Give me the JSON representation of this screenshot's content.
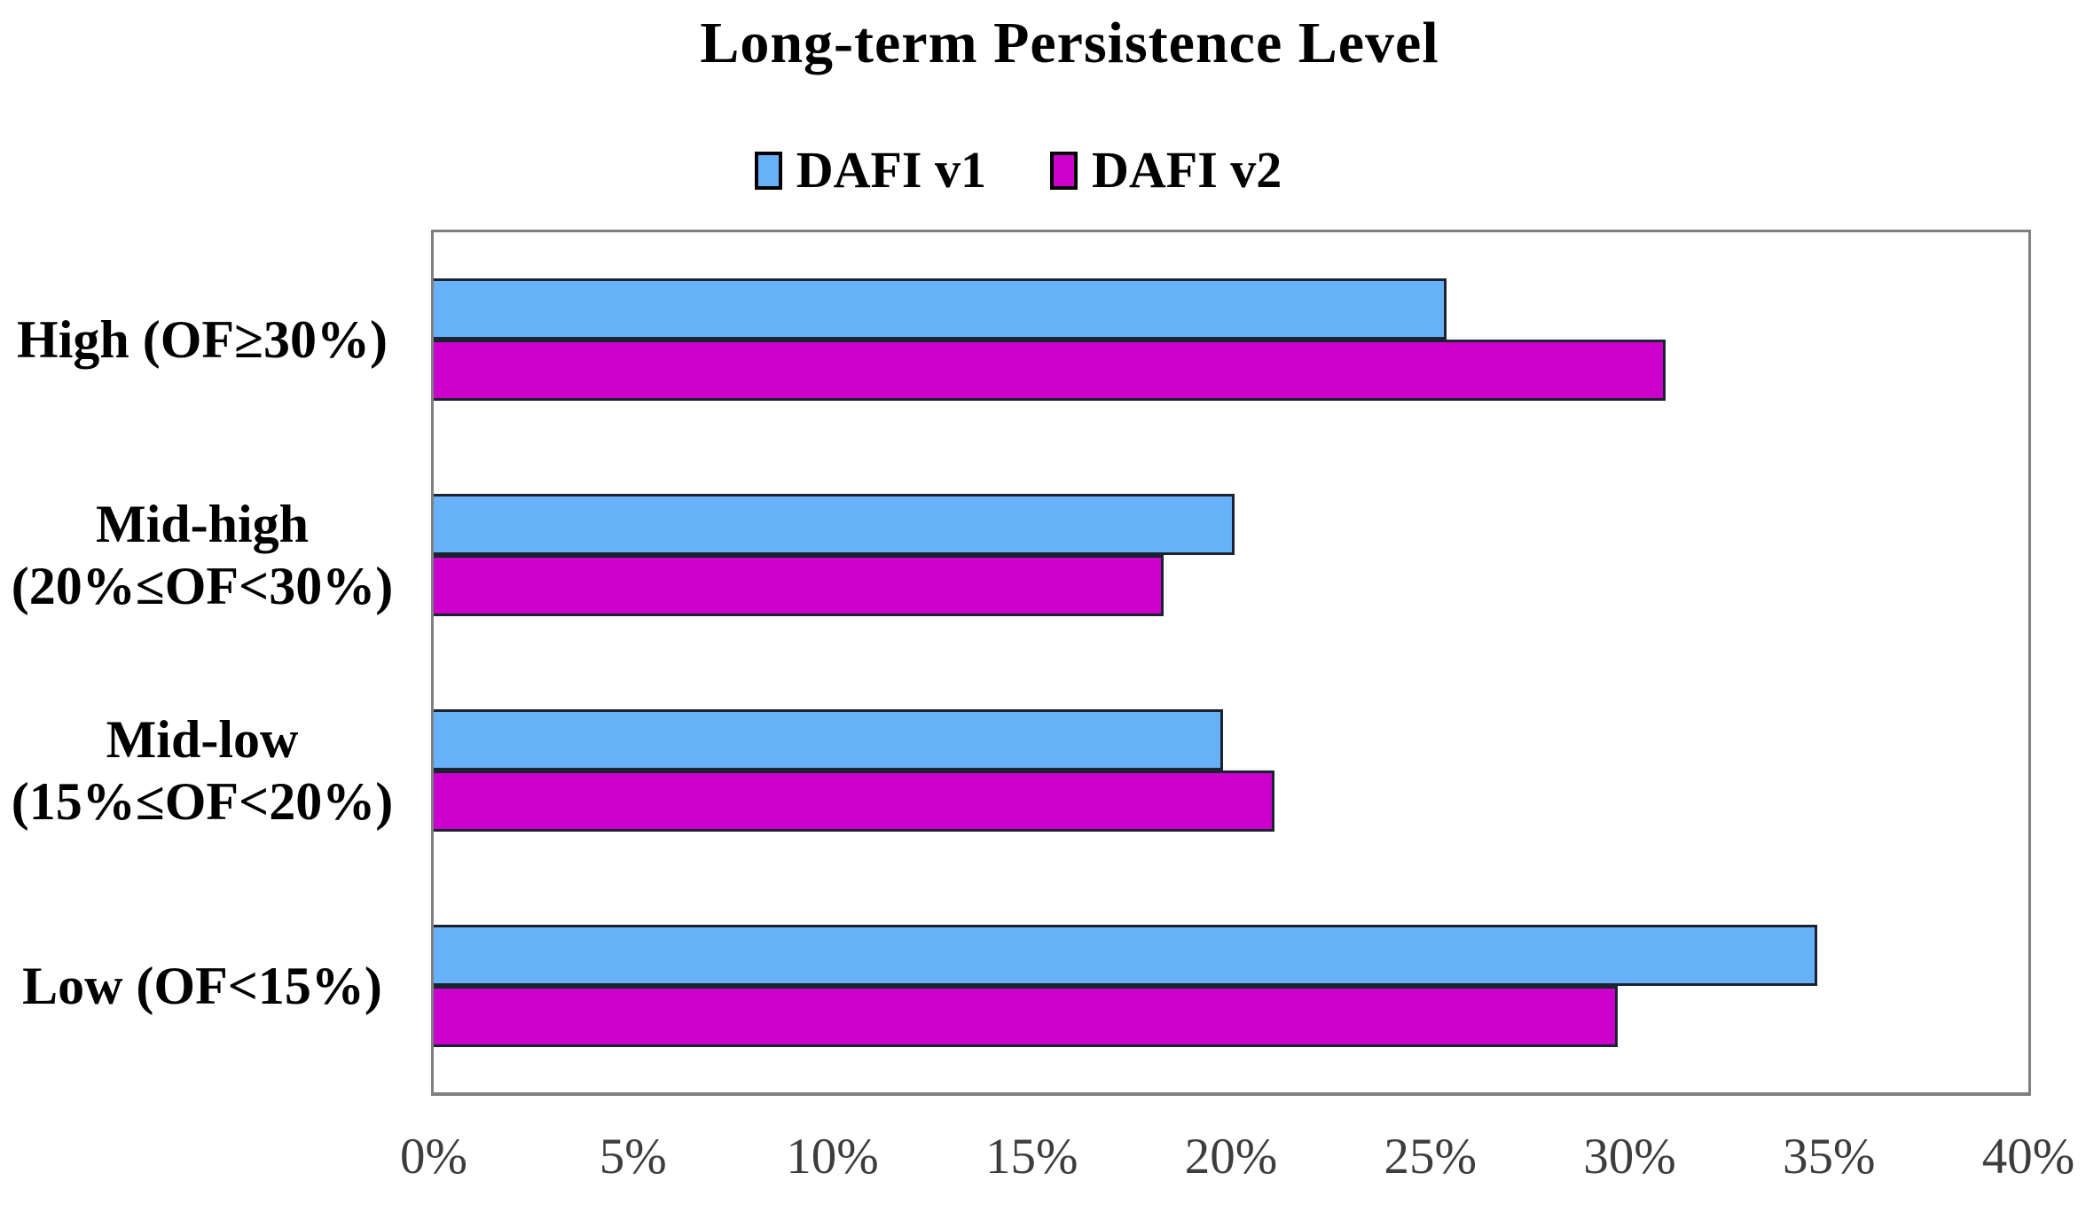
{
  "chart_data": {
    "type": "bar",
    "orientation": "horizontal",
    "title": "Long-term Persistence Level",
    "categories": [
      "High (OF≥30%)",
      "Mid-high (20%≤OF<30%)",
      "Mid-low (15%≤OF<20%)",
      "Low (OF<15%)"
    ],
    "category_label_lines": [
      [
        "High (OF≥30%)"
      ],
      [
        "Mid-high",
        "(20%≤OF<30%)"
      ],
      [
        "Mid-low",
        "(15%≤OF<20%)"
      ],
      [
        "Low (OF<15%)"
      ]
    ],
    "series": [
      {
        "name": "DAFI v1",
        "color": "#67B1F8",
        "values": [
          25.4,
          20.1,
          19.8,
          34.7
        ]
      },
      {
        "name": "DAFI v2",
        "color": "#CC00CC",
        "values": [
          30.9,
          18.3,
          21.1,
          29.7
        ]
      }
    ],
    "xlabel": "",
    "ylabel": "",
    "xlim": [
      0,
      40
    ],
    "x_tick_labels": [
      "0%",
      "5%",
      "10%",
      "15%",
      "20%",
      "25%",
      "30%",
      "35%",
      "40%"
    ],
    "grid": false,
    "legend_position": "top-center",
    "colors": {
      "bar_border": "#1C2330",
      "plot_border": "#808080",
      "axis_text": "#3D3D3D",
      "background": "#FFFFFF"
    }
  }
}
